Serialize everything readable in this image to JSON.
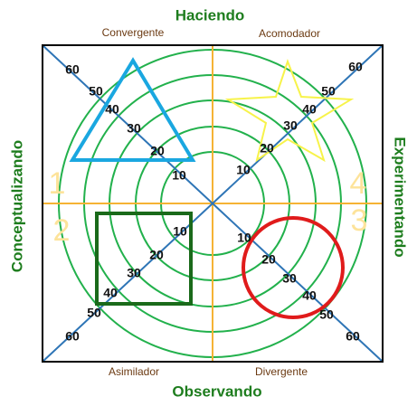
{
  "axes": {
    "top": "Haciendo",
    "bottom": "Observando",
    "left": "Conceptualizando",
    "right": "Experimentando"
  },
  "styles": {
    "top_left": "Convergente",
    "top_right": "Acomodador",
    "bottom_left": "Asimilador",
    "bottom_right": "Divergente"
  },
  "quadrant_numbers": [
    "1",
    "2",
    "3",
    "4"
  ],
  "scale_labels": {
    "top_left": [
      10,
      20,
      30,
      40,
      50,
      60
    ],
    "top_right": [
      10,
      20,
      30,
      40,
      50,
      60
    ],
    "bottom_left": [
      10,
      20,
      30,
      40,
      50,
      60
    ],
    "bottom_right": [
      10,
      20,
      30,
      40,
      50,
      60
    ]
  }
}
